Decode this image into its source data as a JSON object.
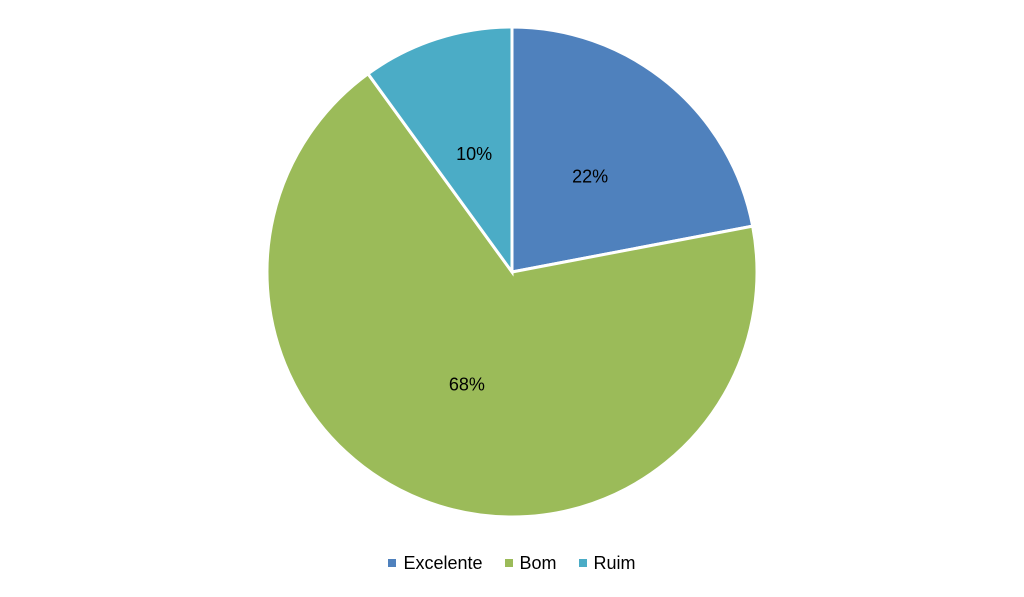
{
  "chart_data": {
    "type": "pie",
    "categories": [
      "Excelente",
      "Bom",
      "Ruim"
    ],
    "values": [
      22,
      68,
      10
    ],
    "value_labels": [
      "22%",
      "68%",
      "10%"
    ],
    "colors": [
      "#4f81bd",
      "#9bbb59",
      "#4bacc6"
    ],
    "legend": "bottom"
  }
}
